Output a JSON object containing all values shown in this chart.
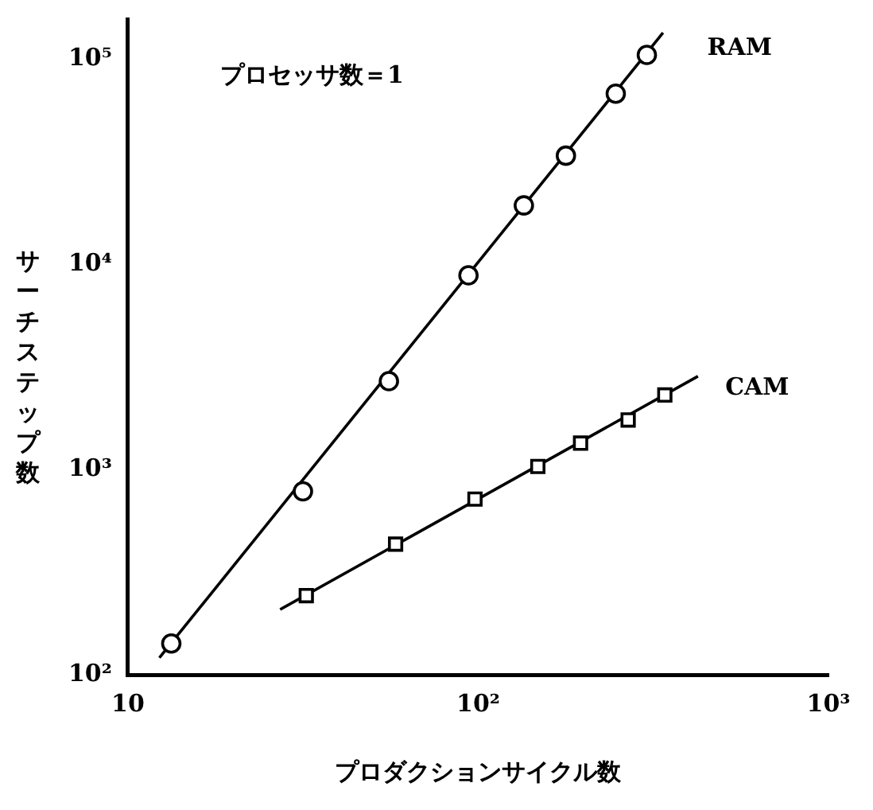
{
  "chart_data": {
    "type": "scatter",
    "xlabel": "プロダクションサイクル数",
    "ylabel": "サーチステップ数",
    "annotations": [
      "プロセッサ数＝1"
    ],
    "log": "xy",
    "grid": false,
    "legend": false,
    "xlim": [
      10,
      1000
    ],
    "xticks": [
      10,
      {
        "value": 100,
        "label": "10²"
      },
      {
        "value": 1000,
        "label": "10³"
      }
    ],
    "ylim": [
      100,
      157000
    ],
    "yticks": [
      {
        "value": 100,
        "label": "10²"
      },
      {
        "value": 1000,
        "label": "10³"
      },
      {
        "value": 10000,
        "label": "10⁴"
      },
      {
        "value": 100000,
        "label": "10⁵"
      }
    ],
    "series": [
      {
        "name": "RAM",
        "marker": "circle",
        "color": "#000000",
        "x": [
          13.3,
          31.6,
          55.6,
          93.8,
          135,
          178,
          247,
          303
        ],
        "values": [
          142,
          783,
          2700,
          8850,
          19400,
          33900,
          68000,
          105000
        ]
      },
      {
        "name": "CAM",
        "marker": "square",
        "color": "#000000",
        "x": [
          32.3,
          58.1,
          97.9,
          148,
          196,
          268,
          341
        ],
        "values": [
          243,
          433,
          718,
          1036,
          1346,
          1745,
          2310
        ]
      },
      {
        "type": "line",
        "marker": "none",
        "line_style": "solid",
        "color": "#000000",
        "x": [
          12.3,
          337
        ],
        "values": [
          121,
          134600
        ]
      },
      {
        "type": "line",
        "marker": "none",
        "line_style": "solid",
        "color": "#000000",
        "x": [
          27.2,
          424
        ],
        "values": [
          208,
          2850
        ]
      }
    ]
  }
}
